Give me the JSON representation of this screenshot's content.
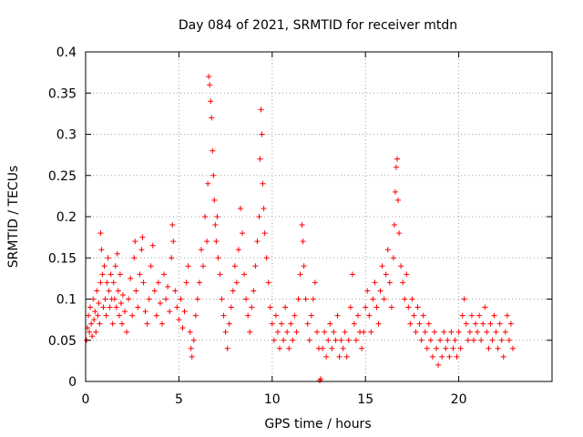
{
  "chart_data": {
    "type": "scatter",
    "title": "Day 084 of 2021, SRMTID for receiver mtdn",
    "xlabel": "GPS time / hours",
    "ylabel": "SRMTID / TECUs",
    "xlim": [
      0,
      25
    ],
    "ylim": [
      0,
      0.4
    ],
    "x_ticks": [
      0,
      5,
      10,
      15,
      20
    ],
    "x_tick_labels": [
      "0",
      "5",
      "10",
      "15",
      "20"
    ],
    "y_ticks": [
      0,
      0.05,
      0.1,
      0.15,
      0.2,
      0.25,
      0.3,
      0.35,
      0.4
    ],
    "y_tick_labels": [
      "0",
      "0.05",
      "0.1",
      "0.15",
      "0.2",
      "0.25",
      "0.3",
      "0.35",
      "0.4"
    ],
    "grid": true,
    "marker": "plus",
    "color": "#ff0000",
    "series": [
      {
        "name": "SRMTID",
        "points": [
          [
            0.05,
            0.05
          ],
          [
            0.1,
            0.065
          ],
          [
            0.15,
            0.08
          ],
          [
            0.2,
            0.06
          ],
          [
            0.25,
            0.09
          ],
          [
            0.3,
            0.07
          ],
          [
            0.35,
            0.055
          ],
          [
            0.4,
            0.1
          ],
          [
            0.45,
            0.075
          ],
          [
            0.5,
            0.085
          ],
          [
            0.55,
            0.06
          ],
          [
            0.6,
            0.11
          ],
          [
            0.65,
            0.08
          ],
          [
            0.7,
            0.095
          ],
          [
            0.75,
            0.07
          ],
          [
            0.8,
            0.12
          ],
          [
            0.8,
            0.18
          ],
          [
            0.85,
            0.16
          ],
          [
            0.9,
            0.13
          ],
          [
            0.95,
            0.09
          ],
          [
            1.0,
            0.14
          ],
          [
            1.05,
            0.1
          ],
          [
            1.1,
            0.08
          ],
          [
            1.15,
            0.12
          ],
          [
            1.2,
            0.15
          ],
          [
            1.25,
            0.11
          ],
          [
            1.3,
            0.09
          ],
          [
            1.35,
            0.13
          ],
          [
            1.4,
            0.1
          ],
          [
            1.45,
            0.07
          ],
          [
            1.5,
            0.12
          ],
          [
            1.55,
            0.1
          ],
          [
            1.6,
            0.14
          ],
          [
            1.65,
            0.09
          ],
          [
            1.7,
            0.155
          ],
          [
            1.75,
            0.11
          ],
          [
            1.8,
            0.08
          ],
          [
            1.85,
            0.13
          ],
          [
            1.9,
            0.095
          ],
          [
            1.95,
            0.07
          ],
          [
            2.0,
            0.105
          ],
          [
            2.1,
            0.085
          ],
          [
            2.2,
            0.06
          ],
          [
            2.3,
            0.1
          ],
          [
            2.4,
            0.125
          ],
          [
            2.5,
            0.08
          ],
          [
            2.6,
            0.15
          ],
          [
            2.65,
            0.17
          ],
          [
            2.7,
            0.11
          ],
          [
            2.8,
            0.09
          ],
          [
            2.9,
            0.13
          ],
          [
            3.0,
            0.16
          ],
          [
            3.05,
            0.175
          ],
          [
            3.1,
            0.12
          ],
          [
            3.2,
            0.085
          ],
          [
            3.3,
            0.07
          ],
          [
            3.4,
            0.1
          ],
          [
            3.5,
            0.14
          ],
          [
            3.6,
            0.165
          ],
          [
            3.7,
            0.11
          ],
          [
            3.8,
            0.08
          ],
          [
            3.9,
            0.12
          ],
          [
            4.0,
            0.095
          ],
          [
            4.1,
            0.07
          ],
          [
            4.2,
            0.13
          ],
          [
            4.3,
            0.1
          ],
          [
            4.4,
            0.115
          ],
          [
            4.5,
            0.085
          ],
          [
            4.6,
            0.15
          ],
          [
            4.65,
            0.19
          ],
          [
            4.7,
            0.17
          ],
          [
            4.8,
            0.11
          ],
          [
            4.9,
            0.09
          ],
          [
            5.0,
            0.075
          ],
          [
            5.1,
            0.1
          ],
          [
            5.2,
            0.065
          ],
          [
            5.3,
            0.085
          ],
          [
            5.4,
            0.12
          ],
          [
            5.5,
            0.14
          ],
          [
            5.6,
            0.06
          ],
          [
            5.65,
            0.04
          ],
          [
            5.7,
            0.03
          ],
          [
            5.8,
            0.05
          ],
          [
            5.9,
            0.08
          ],
          [
            6.0,
            0.1
          ],
          [
            6.1,
            0.12
          ],
          [
            6.2,
            0.16
          ],
          [
            6.3,
            0.14
          ],
          [
            6.4,
            0.2
          ],
          [
            6.5,
            0.17
          ],
          [
            6.55,
            0.24
          ],
          [
            6.6,
            0.37
          ],
          [
            6.65,
            0.36
          ],
          [
            6.7,
            0.34
          ],
          [
            6.75,
            0.32
          ],
          [
            6.8,
            0.28
          ],
          [
            6.85,
            0.25
          ],
          [
            6.9,
            0.22
          ],
          [
            6.95,
            0.19
          ],
          [
            7.0,
            0.17
          ],
          [
            7.05,
            0.2
          ],
          [
            7.1,
            0.15
          ],
          [
            7.2,
            0.13
          ],
          [
            7.3,
            0.1
          ],
          [
            7.4,
            0.08
          ],
          [
            7.5,
            0.06
          ],
          [
            7.6,
            0.04
          ],
          [
            7.7,
            0.07
          ],
          [
            7.8,
            0.09
          ],
          [
            7.9,
            0.11
          ],
          [
            8.0,
            0.14
          ],
          [
            8.1,
            0.12
          ],
          [
            8.2,
            0.16
          ],
          [
            8.3,
            0.21
          ],
          [
            8.4,
            0.18
          ],
          [
            8.5,
            0.13
          ],
          [
            8.6,
            0.1
          ],
          [
            8.7,
            0.08
          ],
          [
            8.8,
            0.06
          ],
          [
            8.9,
            0.09
          ],
          [
            9.0,
            0.11
          ],
          [
            9.1,
            0.14
          ],
          [
            9.2,
            0.17
          ],
          [
            9.3,
            0.2
          ],
          [
            9.35,
            0.27
          ],
          [
            9.4,
            0.33
          ],
          [
            9.45,
            0.3
          ],
          [
            9.5,
            0.24
          ],
          [
            9.55,
            0.21
          ],
          [
            9.6,
            0.18
          ],
          [
            9.7,
            0.15
          ],
          [
            9.8,
            0.12
          ],
          [
            9.9,
            0.09
          ],
          [
            10.0,
            0.07
          ],
          [
            10.1,
            0.05
          ],
          [
            10.2,
            0.08
          ],
          [
            10.3,
            0.06
          ],
          [
            10.4,
            0.04
          ],
          [
            10.5,
            0.07
          ],
          [
            10.6,
            0.05
          ],
          [
            10.7,
            0.09
          ],
          [
            10.8,
            0.06
          ],
          [
            10.9,
            0.04
          ],
          [
            11.0,
            0.07
          ],
          [
            11.1,
            0.05
          ],
          [
            11.2,
            0.08
          ],
          [
            11.3,
            0.06
          ],
          [
            11.4,
            0.1
          ],
          [
            11.5,
            0.13
          ],
          [
            11.6,
            0.19
          ],
          [
            11.65,
            0.17
          ],
          [
            11.7,
            0.14
          ],
          [
            11.8,
            0.1
          ],
          [
            11.9,
            0.07
          ],
          [
            12.0,
            0.05
          ],
          [
            12.1,
            0.08
          ],
          [
            12.2,
            0.1
          ],
          [
            12.3,
            0.12
          ],
          [
            12.4,
            0.06
          ],
          [
            12.5,
            0.04
          ],
          [
            12.55,
            0.001
          ],
          [
            12.6,
            0.003
          ],
          [
            12.7,
            0.04
          ],
          [
            12.8,
            0.06
          ],
          [
            12.9,
            0.03
          ],
          [
            13.0,
            0.05
          ],
          [
            13.1,
            0.07
          ],
          [
            13.2,
            0.04
          ],
          [
            13.3,
            0.06
          ],
          [
            13.4,
            0.05
          ],
          [
            13.5,
            0.08
          ],
          [
            13.6,
            0.03
          ],
          [
            13.7,
            0.05
          ],
          [
            13.8,
            0.04
          ],
          [
            13.9,
            0.06
          ],
          [
            14.0,
            0.03
          ],
          [
            14.1,
            0.05
          ],
          [
            14.2,
            0.09
          ],
          [
            14.3,
            0.13
          ],
          [
            14.4,
            0.07
          ],
          [
            14.5,
            0.05
          ],
          [
            14.6,
            0.08
          ],
          [
            14.7,
            0.06
          ],
          [
            14.8,
            0.04
          ],
          [
            14.9,
            0.06
          ],
          [
            15.0,
            0.09
          ],
          [
            15.1,
            0.11
          ],
          [
            15.2,
            0.08
          ],
          [
            15.3,
            0.06
          ],
          [
            15.4,
            0.1
          ],
          [
            15.5,
            0.12
          ],
          [
            15.6,
            0.09
          ],
          [
            15.7,
            0.07
          ],
          [
            15.8,
            0.11
          ],
          [
            15.9,
            0.14
          ],
          [
            16.0,
            0.1
          ],
          [
            16.1,
            0.13
          ],
          [
            16.2,
            0.16
          ],
          [
            16.3,
            0.12
          ],
          [
            16.4,
            0.09
          ],
          [
            16.5,
            0.15
          ],
          [
            16.55,
            0.19
          ],
          [
            16.6,
            0.23
          ],
          [
            16.65,
            0.26
          ],
          [
            16.7,
            0.27
          ],
          [
            16.75,
            0.22
          ],
          [
            16.8,
            0.18
          ],
          [
            16.9,
            0.14
          ],
          [
            17.0,
            0.12
          ],
          [
            17.1,
            0.1
          ],
          [
            17.2,
            0.13
          ],
          [
            17.3,
            0.09
          ],
          [
            17.4,
            0.07
          ],
          [
            17.5,
            0.1
          ],
          [
            17.6,
            0.08
          ],
          [
            17.7,
            0.06
          ],
          [
            17.8,
            0.09
          ],
          [
            17.9,
            0.07
          ],
          [
            18.0,
            0.05
          ],
          [
            18.1,
            0.08
          ],
          [
            18.2,
            0.06
          ],
          [
            18.3,
            0.04
          ],
          [
            18.4,
            0.07
          ],
          [
            18.5,
            0.05
          ],
          [
            18.6,
            0.03
          ],
          [
            18.7,
            0.06
          ],
          [
            18.8,
            0.04
          ],
          [
            18.9,
            0.02
          ],
          [
            19.0,
            0.05
          ],
          [
            19.1,
            0.03
          ],
          [
            19.2,
            0.06
          ],
          [
            19.3,
            0.04
          ],
          [
            19.4,
            0.05
          ],
          [
            19.5,
            0.03
          ],
          [
            19.6,
            0.06
          ],
          [
            19.7,
            0.04
          ],
          [
            19.8,
            0.05
          ],
          [
            19.9,
            0.03
          ],
          [
            20.0,
            0.06
          ],
          [
            20.1,
            0.04
          ],
          [
            20.2,
            0.08
          ],
          [
            20.3,
            0.1
          ],
          [
            20.4,
            0.07
          ],
          [
            20.5,
            0.05
          ],
          [
            20.6,
            0.06
          ],
          [
            20.7,
            0.08
          ],
          [
            20.8,
            0.05
          ],
          [
            20.9,
            0.07
          ],
          [
            21.0,
            0.06
          ],
          [
            21.1,
            0.08
          ],
          [
            21.2,
            0.05
          ],
          [
            21.3,
            0.07
          ],
          [
            21.4,
            0.09
          ],
          [
            21.5,
            0.06
          ],
          [
            21.6,
            0.04
          ],
          [
            21.7,
            0.07
          ],
          [
            21.8,
            0.05
          ],
          [
            21.9,
            0.08
          ],
          [
            22.0,
            0.06
          ],
          [
            22.1,
            0.04
          ],
          [
            22.2,
            0.07
          ],
          [
            22.3,
            0.05
          ],
          [
            22.4,
            0.03
          ],
          [
            22.5,
            0.06
          ],
          [
            22.6,
            0.08
          ],
          [
            22.7,
            0.05
          ],
          [
            22.8,
            0.07
          ],
          [
            22.9,
            0.04
          ]
        ]
      }
    ]
  }
}
